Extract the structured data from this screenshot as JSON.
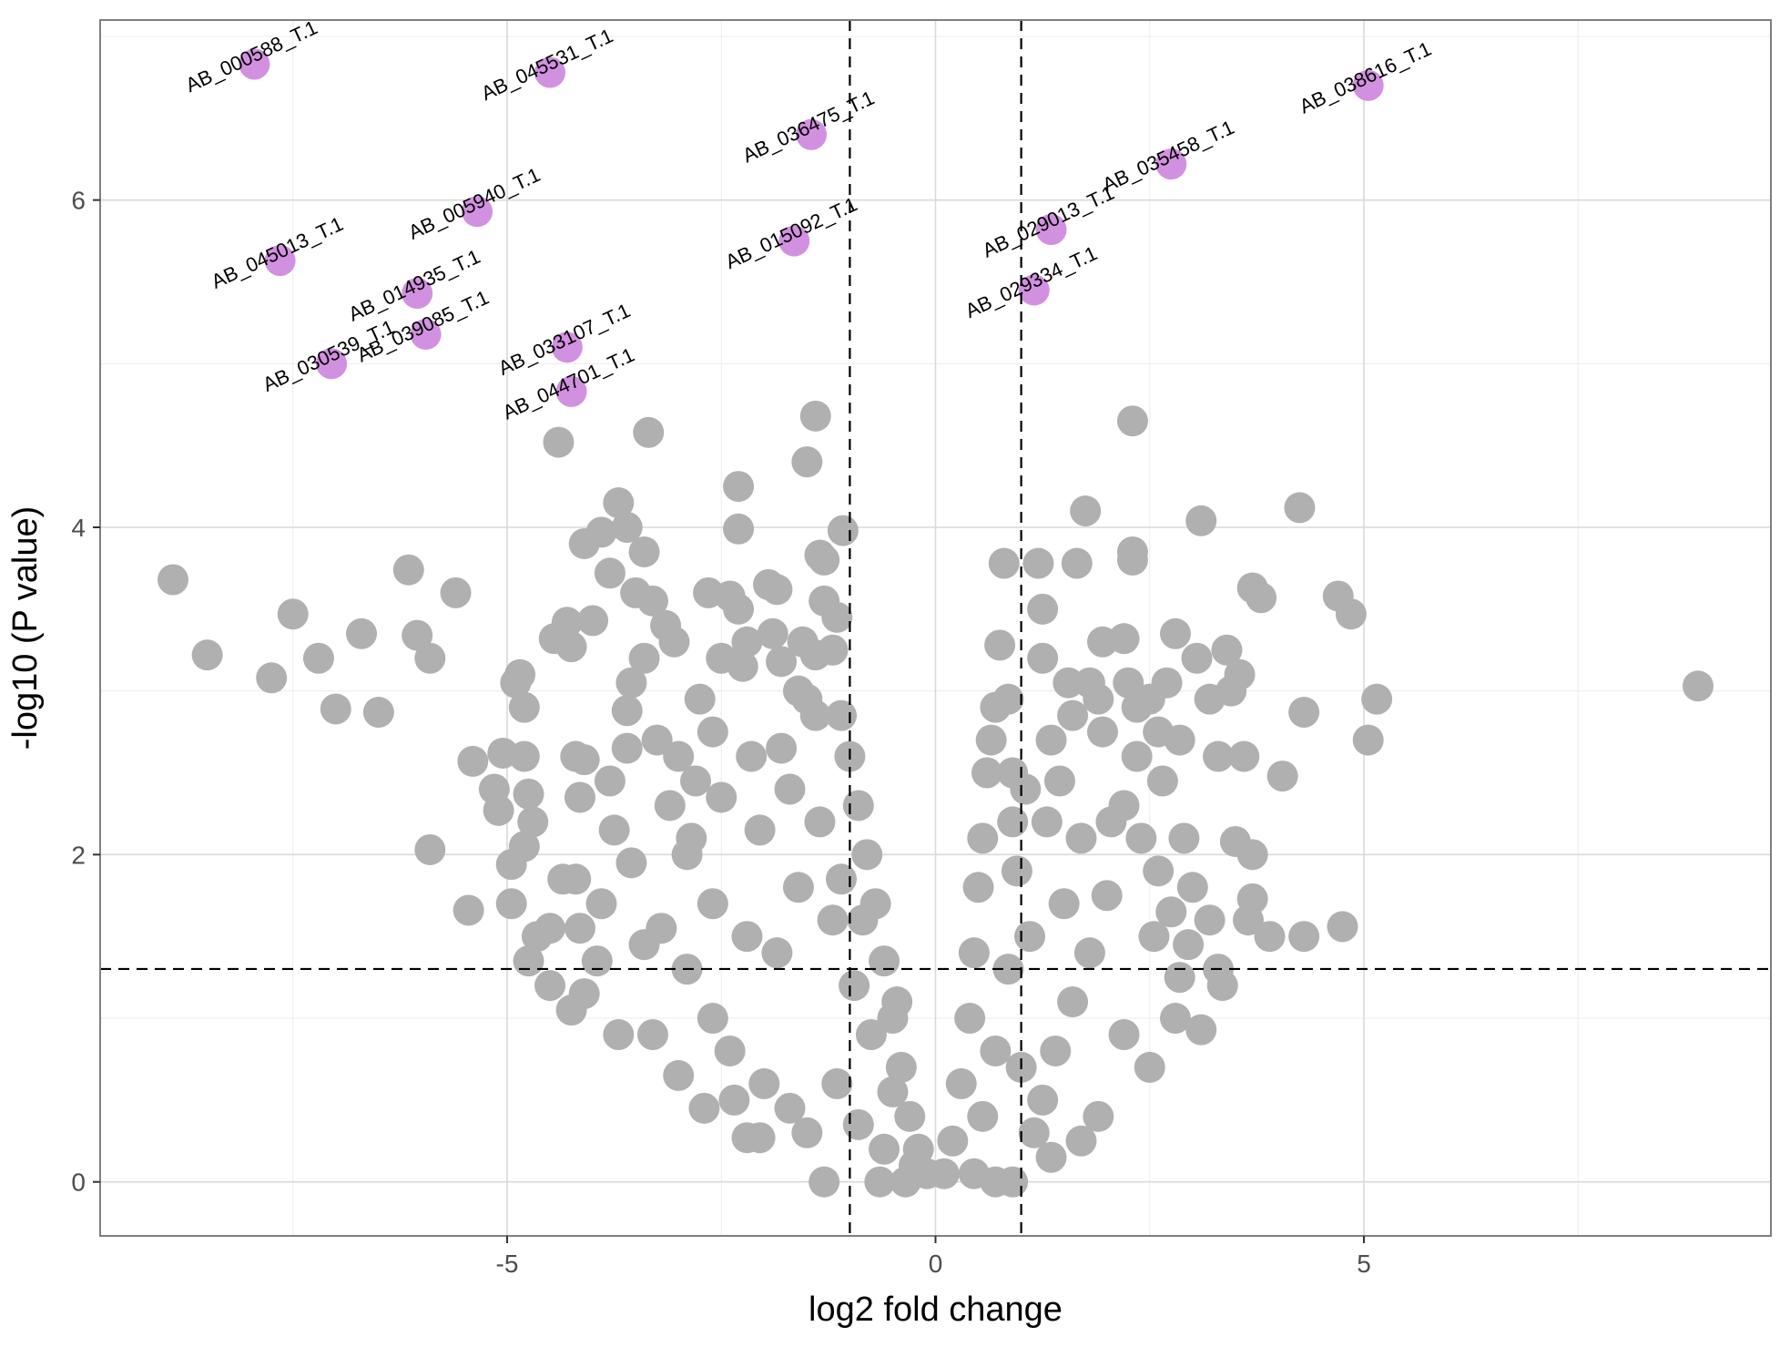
{
  "chart_data": {
    "type": "scatter",
    "title": "",
    "xlabel": "log2 fold change",
    "ylabel": "-log10 (P value)",
    "xlim": [
      -9.75,
      9.75
    ],
    "ylim": [
      -0.33,
      7.1
    ],
    "x_ticks": [
      -5,
      0,
      5
    ],
    "x_tick_labels": [
      "-5",
      "0",
      "5"
    ],
    "y_ticks": [
      0,
      2,
      4,
      6
    ],
    "y_tick_labels": [
      "0",
      "2",
      "4",
      "6"
    ],
    "grid": true,
    "legend": "none",
    "thresholds": {
      "x": [
        -1,
        1
      ],
      "y": 1.301
    },
    "colors": {
      "background": "#ffffff",
      "panel_border": "#7f7f7f",
      "grid_major": "#d9d9d9",
      "grid_minor": "#ececec",
      "non_significant": "#b0b0b0",
      "significant": "#d291e0",
      "threshold_line": "#000000"
    },
    "series": [
      {
        "color": "#b0b0b0",
        "points": [
          [
            -8.9,
            3.68
          ],
          [
            -8.5,
            3.22
          ],
          [
            -7.5,
            3.47
          ],
          [
            -7.75,
            3.08
          ],
          [
            -7.2,
            3.2
          ],
          [
            -7.0,
            2.89
          ],
          [
            -6.7,
            3.35
          ],
          [
            -6.5,
            2.87
          ],
          [
            -6.15,
            3.74
          ],
          [
            -6.05,
            3.34
          ],
          [
            -5.9,
            3.2
          ],
          [
            -5.6,
            3.6
          ],
          [
            -5.4,
            2.57
          ],
          [
            -5.45,
            1.66
          ],
          [
            -5.9,
            2.03
          ],
          [
            -5.05,
            2.62
          ],
          [
            -5.15,
            2.4
          ],
          [
            -5.1,
            2.27
          ],
          [
            -4.95,
            1.94
          ],
          [
            -4.95,
            1.7
          ],
          [
            -4.9,
            3.05
          ],
          [
            -4.85,
            3.1
          ],
          [
            -4.8,
            2.9
          ],
          [
            -4.8,
            2.6
          ],
          [
            -4.75,
            2.37
          ],
          [
            -4.7,
            2.2
          ],
          [
            -4.8,
            2.05
          ],
          [
            -4.75,
            1.35
          ],
          [
            -4.65,
            1.5
          ],
          [
            -4.5,
            1.55
          ],
          [
            -4.5,
            1.2
          ],
          [
            -4.45,
            3.32
          ],
          [
            -4.3,
            3.42
          ],
          [
            -4.25,
            3.27
          ],
          [
            -4.2,
            2.6
          ],
          [
            -4.1,
            2.58
          ],
          [
            -4.15,
            2.35
          ],
          [
            -4.2,
            1.85
          ],
          [
            -4.4,
            4.52
          ],
          [
            -4.0,
            3.43
          ],
          [
            -4.1,
            3.9
          ],
          [
            -3.9,
            3.97
          ],
          [
            -3.8,
            3.72
          ],
          [
            -3.7,
            4.15
          ],
          [
            -3.6,
            4.0
          ],
          [
            -3.4,
            3.85
          ],
          [
            -3.35,
            4.58
          ],
          [
            -3.5,
            3.6
          ],
          [
            -3.3,
            3.55
          ],
          [
            -3.15,
            3.4
          ],
          [
            -3.05,
            3.3
          ],
          [
            -3.4,
            3.2
          ],
          [
            -3.55,
            3.05
          ],
          [
            -3.6,
            2.88
          ],
          [
            -3.25,
            2.7
          ],
          [
            -3.6,
            2.65
          ],
          [
            -3.0,
            2.6
          ],
          [
            -2.65,
            3.6
          ],
          [
            -2.4,
            3.58
          ],
          [
            -2.3,
            3.5
          ],
          [
            -2.2,
            3.3
          ],
          [
            -2.5,
            3.2
          ],
          [
            -2.25,
            3.15
          ],
          [
            -2.75,
            2.95
          ],
          [
            -2.6,
            2.75
          ],
          [
            -2.8,
            2.45
          ],
          [
            -2.3,
            4.25
          ],
          [
            -2.3,
            3.99
          ],
          [
            -1.95,
            3.65
          ],
          [
            -1.85,
            3.62
          ],
          [
            -1.9,
            3.35
          ],
          [
            -1.8,
            3.18
          ],
          [
            -1.6,
            3.0
          ],
          [
            -1.5,
            2.95
          ],
          [
            -1.4,
            2.85
          ],
          [
            -1.55,
            3.3
          ],
          [
            -1.4,
            3.22
          ],
          [
            -1.5,
            4.4
          ],
          [
            -1.4,
            4.68
          ],
          [
            -1.35,
            3.83
          ],
          [
            -1.3,
            3.8
          ],
          [
            -1.3,
            3.55
          ],
          [
            -1.15,
            3.45
          ],
          [
            -1.2,
            3.25
          ],
          [
            -1.1,
            2.85
          ],
          [
            -1.08,
            3.98
          ],
          [
            -1.0,
            2.6
          ],
          [
            -0.9,
            2.3
          ],
          [
            -0.8,
            2.0
          ],
          [
            -0.7,
            1.7
          ],
          [
            -0.6,
            1.35
          ],
          [
            -0.5,
            1.0
          ],
          [
            -0.4,
            0.7
          ],
          [
            -0.3,
            0.4
          ],
          [
            -0.2,
            0.2
          ],
          [
            -0.1,
            0.05
          ],
          [
            -1.3,
            0.0
          ],
          [
            -2.05,
            0.27
          ],
          [
            -2.2,
            0.27
          ],
          [
            -3.7,
            0.9
          ],
          [
            -4.25,
            1.05
          ],
          [
            -4.1,
            1.15
          ],
          [
            -3.8,
            2.45
          ],
          [
            -3.75,
            2.15
          ],
          [
            -3.9,
            1.7
          ],
          [
            -3.55,
            1.95
          ],
          [
            -3.2,
            1.55
          ],
          [
            -2.9,
            1.3
          ],
          [
            -2.6,
            1.0
          ],
          [
            -2.4,
            0.8
          ],
          [
            -2.0,
            0.6
          ],
          [
            -1.7,
            0.45
          ],
          [
            -1.5,
            0.3
          ],
          [
            -3.3,
            0.9
          ],
          [
            -3.0,
            0.65
          ],
          [
            -2.7,
            0.45
          ],
          [
            -2.35,
            0.5
          ],
          [
            -1.85,
            1.4
          ],
          [
            -1.6,
            1.8
          ],
          [
            -1.2,
            1.6
          ],
          [
            -0.95,
            1.2
          ],
          [
            -0.75,
            0.9
          ],
          [
            -1.15,
            0.6
          ],
          [
            -0.6,
            0.2
          ],
          [
            -0.35,
            0.0
          ],
          [
            -0.65,
            0.0
          ],
          [
            -2.9,
            2.0
          ],
          [
            -2.6,
            1.7
          ],
          [
            -2.2,
            1.5
          ],
          [
            -2.05,
            2.15
          ],
          [
            -1.7,
            2.4
          ],
          [
            -1.35,
            2.2
          ],
          [
            -1.1,
            1.85
          ],
          [
            -4.35,
            1.85
          ],
          [
            -4.15,
            1.55
          ],
          [
            -3.95,
            1.35
          ],
          [
            -3.4,
            1.45
          ],
          [
            -3.1,
            2.3
          ],
          [
            -2.85,
            2.1
          ],
          [
            -2.5,
            2.35
          ],
          [
            -2.15,
            2.6
          ],
          [
            -1.8,
            2.65
          ],
          [
            -0.85,
            1.6
          ],
          [
            -0.5,
            0.55
          ],
          [
            -0.25,
            0.1
          ],
          [
            -0.9,
            0.35
          ],
          [
            -0.45,
            1.1
          ],
          [
            0.1,
            0.05
          ],
          [
            0.2,
            0.25
          ],
          [
            0.3,
            0.6
          ],
          [
            0.4,
            1.0
          ],
          [
            0.45,
            1.4
          ],
          [
            0.5,
            1.8
          ],
          [
            0.55,
            2.1
          ],
          [
            0.6,
            2.5
          ],
          [
            0.65,
            2.7
          ],
          [
            0.7,
            2.9
          ],
          [
            0.75,
            3.28
          ],
          [
            0.85,
            2.95
          ],
          [
            0.9,
            2.5
          ],
          [
            0.8,
            3.78
          ],
          [
            0.9,
            2.2
          ],
          [
            0.95,
            1.9
          ],
          [
            1.1,
            1.5
          ],
          [
            1.25,
            3.5
          ],
          [
            1.2,
            3.78
          ],
          [
            1.25,
            3.2
          ],
          [
            1.35,
            2.7
          ],
          [
            1.45,
            2.45
          ],
          [
            1.55,
            3.05
          ],
          [
            1.6,
            2.85
          ],
          [
            1.65,
            3.78
          ],
          [
            1.75,
            4.1
          ],
          [
            1.8,
            3.05
          ],
          [
            1.9,
            2.95
          ],
          [
            1.95,
            2.75
          ],
          [
            1.95,
            3.3
          ],
          [
            2.2,
            3.32
          ],
          [
            2.25,
            3.05
          ],
          [
            2.3,
            3.85
          ],
          [
            2.3,
            3.8
          ],
          [
            2.3,
            4.65
          ],
          [
            2.35,
            2.9
          ],
          [
            2.5,
            2.95
          ],
          [
            2.6,
            2.75
          ],
          [
            2.7,
            3.05
          ],
          [
            2.8,
            3.35
          ],
          [
            2.85,
            2.7
          ],
          [
            3.05,
            3.2
          ],
          [
            3.1,
            4.04
          ],
          [
            3.2,
            2.95
          ],
          [
            3.3,
            2.6
          ],
          [
            3.4,
            3.25
          ],
          [
            3.55,
            3.1
          ],
          [
            3.45,
            3.0
          ],
          [
            3.6,
            2.6
          ],
          [
            3.7,
            3.63
          ],
          [
            3.8,
            3.57
          ],
          [
            4.05,
            2.48
          ],
          [
            4.25,
            4.12
          ],
          [
            4.3,
            2.87
          ],
          [
            4.3,
            1.5
          ],
          [
            4.7,
            3.58
          ],
          [
            4.75,
            1.56
          ],
          [
            4.85,
            3.47
          ],
          [
            5.05,
            2.7
          ],
          [
            5.15,
            2.95
          ],
          [
            8.9,
            3.03
          ],
          [
            3.9,
            1.5
          ],
          [
            3.65,
            1.6
          ],
          [
            3.7,
            1.73
          ],
          [
            3.7,
            2.0
          ],
          [
            3.5,
            2.08
          ],
          [
            3.3,
            1.3
          ],
          [
            3.35,
            1.2
          ],
          [
            3.1,
            0.93
          ],
          [
            2.95,
            1.45
          ],
          [
            2.75,
            1.65
          ],
          [
            2.6,
            1.9
          ],
          [
            2.4,
            2.1
          ],
          [
            2.2,
            2.3
          ],
          [
            2.0,
            1.75
          ],
          [
            1.8,
            1.4
          ],
          [
            1.6,
            1.1
          ],
          [
            1.4,
            0.8
          ],
          [
            1.25,
            0.5
          ],
          [
            1.35,
            0.15
          ],
          [
            1.15,
            0.3
          ],
          [
            2.5,
            0.7
          ],
          [
            2.2,
            0.9
          ],
          [
            1.9,
            0.4
          ],
          [
            1.7,
            0.25
          ],
          [
            2.8,
            1.0
          ],
          [
            3.0,
            1.8
          ],
          [
            2.9,
            2.1
          ],
          [
            2.65,
            2.45
          ],
          [
            2.35,
            2.6
          ],
          [
            2.05,
            2.2
          ],
          [
            1.7,
            2.1
          ],
          [
            1.5,
            1.7
          ],
          [
            1.3,
            2.2
          ],
          [
            1.05,
            2.4
          ],
          [
            0.85,
            1.3
          ],
          [
            0.7,
            0.8
          ],
          [
            0.55,
            0.4
          ],
          [
            0.45,
            0.05
          ],
          [
            0.7,
            0.0
          ],
          [
            0.9,
            0.0
          ],
          [
            1.0,
            0.7
          ],
          [
            3.2,
            1.6
          ],
          [
            2.85,
            1.25
          ],
          [
            2.55,
            1.5
          ]
        ]
      },
      {
        "color": "#d291e0",
        "points": [
          {
            "x": -7.95,
            "y": 6.83,
            "label": "AB_000588_T.1"
          },
          {
            "x": -4.5,
            "y": 6.78,
            "label": "AB_045531_T.1"
          },
          {
            "x": -1.45,
            "y": 6.4,
            "label": "AB_036475_T.1"
          },
          {
            "x": 5.05,
            "y": 6.7,
            "label": "AB_038616_T.1"
          },
          {
            "x": 2.75,
            "y": 6.22,
            "label": "AB_035458_T.1"
          },
          {
            "x": -5.35,
            "y": 5.93,
            "label": "AB_005940_T.1"
          },
          {
            "x": -7.65,
            "y": 5.63,
            "label": "AB_045013_T.1"
          },
          {
            "x": -1.65,
            "y": 5.75,
            "label": "AB_015092_T.1"
          },
          {
            "x": 1.35,
            "y": 5.82,
            "label": "AB_029013_T.1"
          },
          {
            "x": 1.15,
            "y": 5.45,
            "label": "AB_029334_T.1"
          },
          {
            "x": -6.05,
            "y": 5.43,
            "label": "AB_014935_T.1"
          },
          {
            "x": -7.05,
            "y": 5.0,
            "label": "AB_030539_T.1"
          },
          {
            "x": -5.95,
            "y": 5.18,
            "label": "AB_039085_T.1"
          },
          {
            "x": -4.3,
            "y": 5.1,
            "label": "AB_033107_T.1"
          },
          {
            "x": -4.25,
            "y": 4.83,
            "label": "AB_044701_T.1"
          }
        ]
      }
    ]
  }
}
